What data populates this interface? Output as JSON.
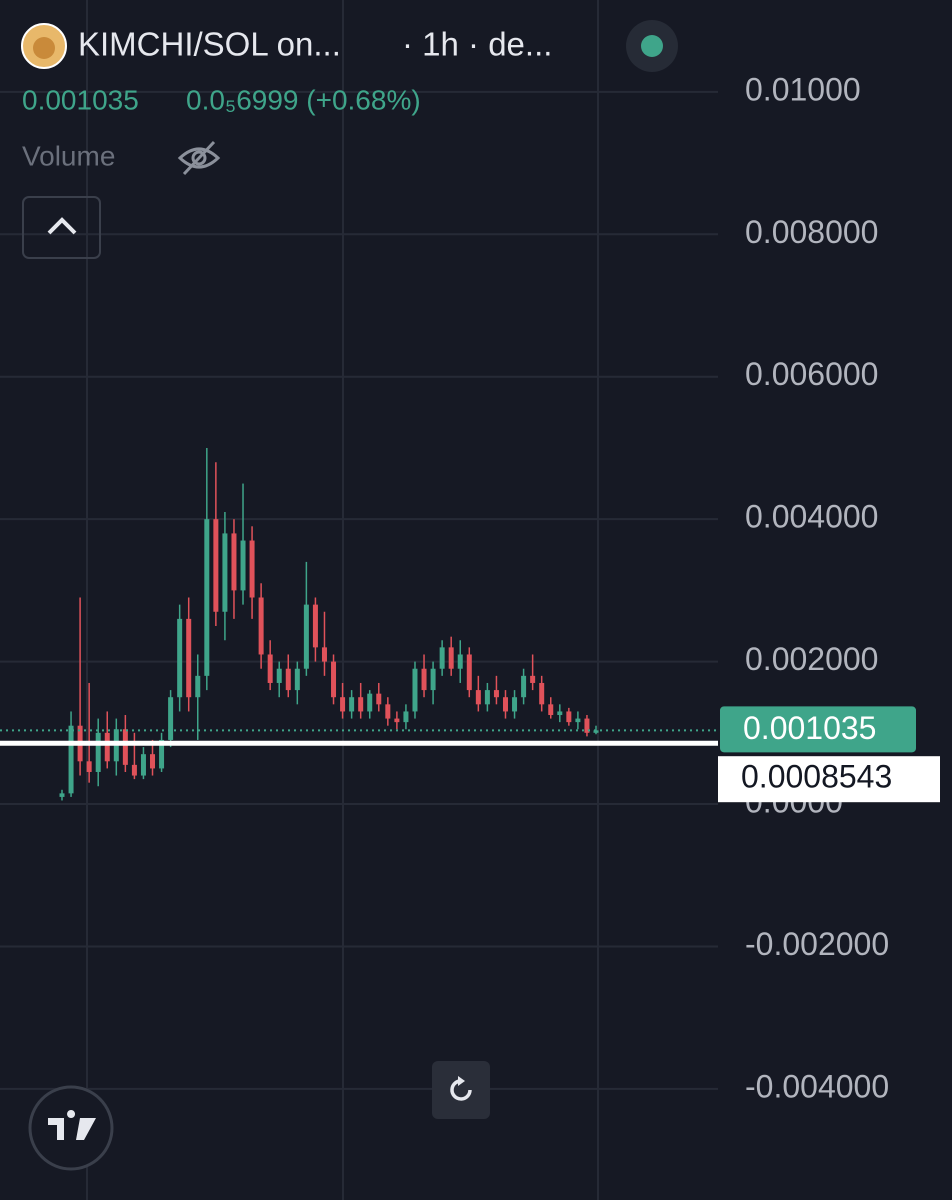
{
  "chart_data": {
    "type": "candlestick",
    "title": "KIMCHI/SOL on...",
    "interval": "· 1h · de...",
    "price": 0.001035,
    "change": "0.0₅6999 (+0.68%)",
    "volume_label": "Volume",
    "up_color": "#3fa58a",
    "down_color": "#e0525a",
    "open": [
      0.0001,
      0.00015,
      0.0011,
      0.0006,
      0.00045,
      0.001,
      0.0006,
      0.00105,
      0.00055,
      0.0004,
      0.0007,
      0.0005,
      0.0009,
      0.0015,
      0.0026,
      0.0015,
      0.0018,
      0.004,
      0.0027,
      0.0038,
      0.003,
      0.0037,
      0.0029,
      0.0021,
      0.0017,
      0.0019,
      0.0016,
      0.0019,
      0.0028,
      0.0022,
      0.002,
      0.0015,
      0.0013,
      0.0015,
      0.0013,
      0.00155,
      0.0014,
      0.0012,
      0.00115,
      0.0013,
      0.0019,
      0.0016,
      0.0019,
      0.0022,
      0.0019,
      0.0021,
      0.0016,
      0.0014,
      0.0016,
      0.0015,
      0.0013,
      0.0015,
      0.0018,
      0.0017,
      0.0014,
      0.00125,
      0.0013,
      0.00115,
      0.0012,
      0.001
    ],
    "high": [
      0.0002,
      0.0013,
      0.0029,
      0.0017,
      0.0012,
      0.0013,
      0.0012,
      0.00125,
      0.001,
      0.0008,
      0.0009,
      0.001,
      0.0016,
      0.0028,
      0.0029,
      0.0021,
      0.005,
      0.0048,
      0.0041,
      0.004,
      0.0045,
      0.0039,
      0.0031,
      0.0023,
      0.002,
      0.0021,
      0.002,
      0.0034,
      0.0029,
      0.0027,
      0.0021,
      0.0017,
      0.0016,
      0.0017,
      0.0016,
      0.0017,
      0.0015,
      0.0013,
      0.0014,
      0.002,
      0.0021,
      0.002,
      0.0023,
      0.00235,
      0.0023,
      0.0022,
      0.0018,
      0.0017,
      0.0018,
      0.0016,
      0.0016,
      0.0019,
      0.0021,
      0.0018,
      0.0015,
      0.0014,
      0.00135,
      0.0013,
      0.00125,
      0.0011
    ],
    "low": [
      5e-05,
      0.0001,
      0.0004,
      0.0003,
      0.00025,
      0.0005,
      0.0004,
      0.00045,
      0.00035,
      0.00035,
      0.0004,
      0.00045,
      0.0008,
      0.0013,
      0.0013,
      0.0009,
      0.0016,
      0.0025,
      0.0023,
      0.0026,
      0.0028,
      0.0026,
      0.0019,
      0.0016,
      0.0015,
      0.0015,
      0.0014,
      0.0018,
      0.002,
      0.0018,
      0.0014,
      0.0012,
      0.0012,
      0.0012,
      0.0012,
      0.0013,
      0.0011,
      0.00105,
      0.00105,
      0.0012,
      0.0015,
      0.0014,
      0.0018,
      0.0018,
      0.0017,
      0.0015,
      0.0013,
      0.0013,
      0.0014,
      0.0012,
      0.0012,
      0.0014,
      0.0016,
      0.0013,
      0.0012,
      0.00115,
      0.0011,
      0.00105,
      0.00095,
      0.00098
    ],
    "close": [
      0.00015,
      0.0011,
      0.0006,
      0.00045,
      0.001,
      0.0006,
      0.00105,
      0.00055,
      0.0004,
      0.0007,
      0.0005,
      0.0009,
      0.0015,
      0.0026,
      0.0015,
      0.0018,
      0.004,
      0.0027,
      0.0038,
      0.003,
      0.0037,
      0.0029,
      0.0021,
      0.0017,
      0.0019,
      0.0016,
      0.0019,
      0.0028,
      0.0022,
      0.002,
      0.0015,
      0.0013,
      0.0015,
      0.0013,
      0.00155,
      0.0014,
      0.0012,
      0.00115,
      0.0013,
      0.0019,
      0.0016,
      0.0019,
      0.0022,
      0.0019,
      0.0021,
      0.0016,
      0.0014,
      0.0016,
      0.0015,
      0.0013,
      0.0015,
      0.0018,
      0.0017,
      0.0014,
      0.00125,
      0.0013,
      0.00115,
      0.0012,
      0.001,
      0.001035
    ],
    "last_price": 0.001035,
    "last_price_color": "#3fa58a",
    "crosshair_price": 0.0008543,
    "ylim": [
      -0.00556,
      0.01129
    ],
    "yticks": [
      {
        "value": 0.01,
        "label": "0.01000"
      },
      {
        "value": 0.008,
        "label": "0.008000"
      },
      {
        "value": 0.006,
        "label": "0.006000"
      },
      {
        "value": 0.004,
        "label": "0.004000"
      },
      {
        "value": 0.002,
        "label": "0.002000"
      },
      {
        "value": 0,
        "label": "0.0000"
      },
      {
        "value": -0.002,
        "label": "-0.002000"
      },
      {
        "value": -0.004,
        "label": "-0.004000"
      }
    ],
    "grid": true
  }
}
